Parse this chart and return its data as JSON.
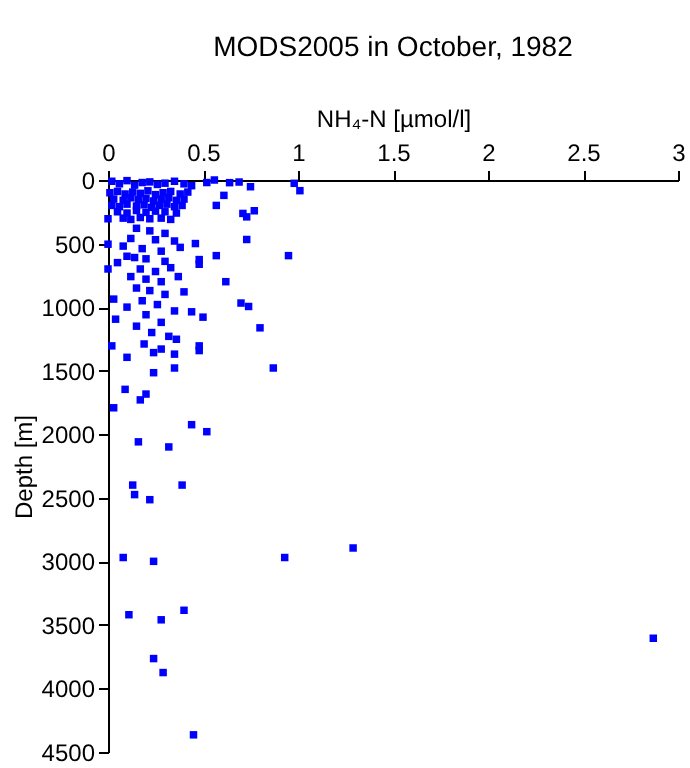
{
  "chart_data": {
    "type": "scatter",
    "title": "MODS2005 in October, 1982",
    "xlabel": "NH₄-N [µmol/l]",
    "ylabel": "Depth [m]",
    "xlim": [
      0,
      3
    ],
    "xticks": [
      0,
      0.5,
      1,
      1.5,
      2,
      2.5,
      3
    ],
    "ylim": [
      4500,
      0
    ],
    "yticks": [
      0,
      500,
      1000,
      1500,
      2000,
      2500,
      3000,
      3500,
      4000,
      4500
    ],
    "marker": "square",
    "grid": false,
    "legend": false,
    "series": [
      {
        "color": "#0000ff",
        "x": [
          0.98,
          1.01,
          0.95,
          0.87,
          0.8,
          0.75,
          0.77,
          0.71,
          0.73,
          0.69,
          0.61,
          0.57,
          0.56,
          0.64,
          0.57,
          0.46,
          0.48,
          0.48,
          0.5,
          0.44,
          0.48,
          0.48,
          0.36,
          0.35,
          0.62,
          0.73,
          0.7,
          0.74,
          0,
          0,
          0,
          0.03,
          0.04,
          0.02,
          0.03,
          0.09,
          0.2,
          0.17,
          0.1,
          0.24,
          0.24,
          0.44,
          0.52,
          0.16,
          0.32,
          0.13,
          0.14,
          0.39,
          0.22,
          0.08,
          0.24,
          0.93,
          1.29,
          0.11,
          0.28,
          0.4,
          0.24,
          0.29,
          0.45,
          2.87,
          0.02,
          0.06,
          0.1,
          0.14,
          0.18,
          0.22,
          0.26,
          0.3,
          0.35,
          0.4,
          0.44,
          0.52,
          0.01,
          0.05,
          0.09,
          0.13,
          0.17,
          0.21,
          0.25,
          0.29,
          0.33,
          0.38,
          0.42,
          0.03,
          0.08,
          0.12,
          0.16,
          0.2,
          0.24,
          0.28,
          0.32,
          0.36,
          0.4,
          0.02,
          0.06,
          0.1,
          0.15,
          0.19,
          0.23,
          0.27,
          0.31,
          0.35,
          0.39,
          0.05,
          0.1,
          0.15,
          0.2,
          0.25,
          0.3,
          0.36,
          0.08,
          0.12,
          0.17,
          0.22,
          0.28,
          0.33,
          0.15,
          0.22,
          0.3,
          0.12,
          0.25,
          0.35,
          0.08,
          0.18,
          0.28,
          0.38,
          0.1,
          0.14,
          0.2,
          0.3,
          0.05,
          0.17,
          0.25,
          0.33,
          0.12,
          0.2,
          0.28,
          0.37,
          0.15,
          0.22,
          0.3,
          0.4,
          0.18,
          0.26,
          0.1,
          0.35,
          0.2,
          0.28,
          0.15,
          0.23,
          0.32,
          0.19,
          0.28,
          0.35
        ],
        "values": [
          26,
          84,
          595,
          1479,
          1163,
          53,
          242,
          263,
          290,
          16,
          121,
          200,
          0,
          21,
          595,
          500,
          626,
          663,
          1079,
          1037,
          1305,
          1342,
          1253,
          1479,
          800,
          468,
          968,
          995,
          305,
          505,
          700,
          937,
          1095,
          1305,
          1792,
          1647,
          1684,
          1730,
          1395,
          1358,
          1516,
          1925,
          1980,
          2060,
          2100,
          2400,
          2475,
          2400,
          2515,
          2970,
          3000,
          2970,
          2895,
          3420,
          3460,
          3385,
          3765,
          3875,
          4365,
          3605,
          10,
          30,
          5,
          40,
          20,
          15,
          35,
          25,
          10,
          30,
          45,
          20,
          100,
          90,
          110,
          95,
          105,
          85,
          115,
          100,
          90,
          110,
          95,
          150,
          160,
          140,
          155,
          145,
          165,
          150,
          140,
          160,
          150,
          200,
          210,
          190,
          205,
          195,
          215,
          200,
          190,
          210,
          200,
          250,
          260,
          240,
          255,
          245,
          250,
          260,
          300,
          310,
          295,
          305,
          300,
          310,
          380,
          400,
          420,
          460,
          470,
          480,
          520,
          540,
          560,
          530,
          600,
          610,
          620,
          640,
          650,
          700,
          720,
          690,
          760,
          780,
          800,
          760,
          850,
          870,
          900,
          880,
          950,
          980,
          1000,
          1030,
          1060,
          1120,
          1150,
          1200,
          1230,
          1290,
          1330,
          1370
        ]
      }
    ]
  }
}
